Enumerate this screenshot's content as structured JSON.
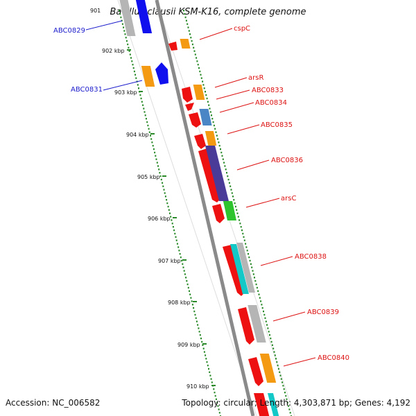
{
  "title": "Bacillus clausii KSM-K16, complete genome",
  "accession": "Accession: NC_006582",
  "summary": "Topology: circular; Length: 4,303,871 bp; Genes: 4,192",
  "scale_labels": [
    "901",
    "902 kbp",
    "903 kbp",
    "904 kbp",
    "905 kbp",
    "906 kbp",
    "907 kbp",
    "908 kbp",
    "909 kbp",
    "910 kbp"
  ],
  "gene_labels_left": [
    "ABC0829",
    "ABC0831"
  ],
  "gene_labels_right": [
    "cspC",
    "arsR",
    "ABC0833",
    "ABC0834",
    "ABC0835",
    "ABC0836",
    "arsC",
    "ABC0838",
    "ABC0839",
    "ABC0840"
  ],
  "colors": {
    "backbone": "#8a8a8a",
    "tick": "#2a8a2a",
    "label_left": "#1a1acc",
    "label_right": "#dd1111",
    "gene_red": "#ee1111",
    "gene_orange": "#f39a12",
    "gene_blue": "#1010ee",
    "gene_gray": "#b5b5b5",
    "gene_steel": "#4a86c5",
    "gene_purple": "#4b3b99",
    "gene_green": "#2ec42e",
    "gene_cyan": "#14c8c8"
  }
}
